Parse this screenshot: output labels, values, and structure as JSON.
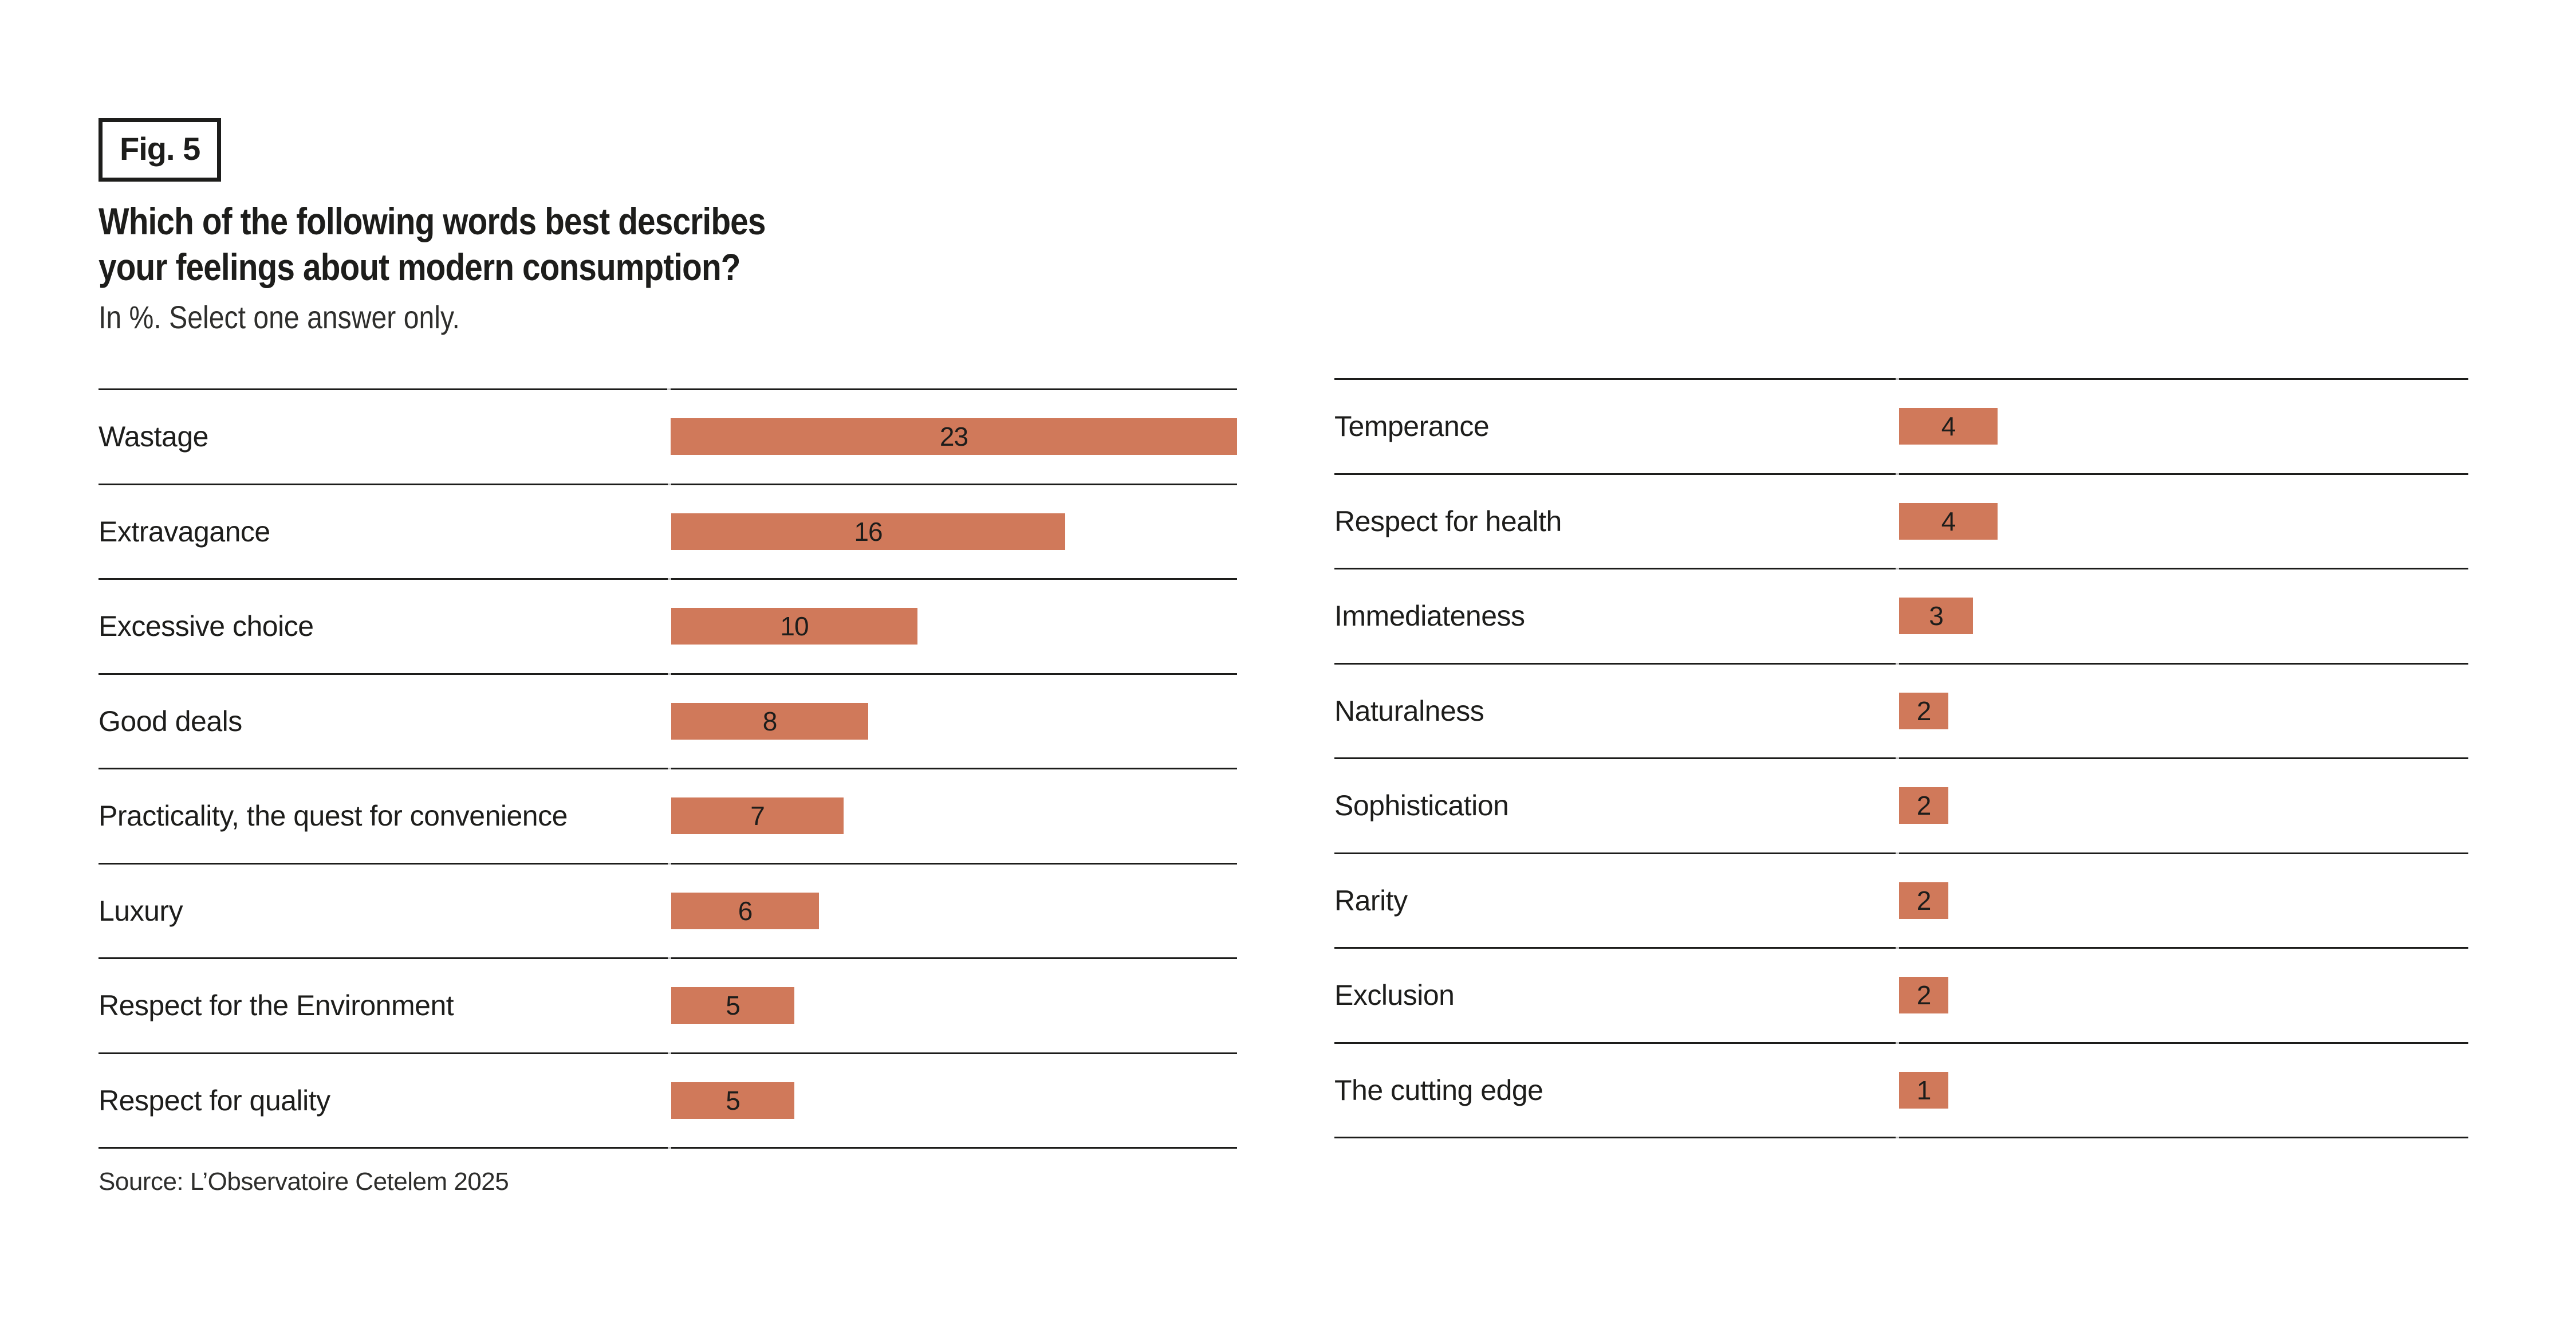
{
  "figure": {
    "tag": "Fig. 5"
  },
  "title": {
    "line1": "Which of the following words best describes",
    "line2": "your feelings about modern consumption?",
    "subtitle": "In %. Select one answer only."
  },
  "source": "Source: L’Observatoire Cetelem 2025",
  "colors": {
    "bar": "#d0795a",
    "text": "#1d1d1b",
    "separator_line": "#1d1d1b",
    "background": "#ffffff"
  },
  "chart_data": {
    "type": "bar",
    "orientation": "horizontal",
    "unit": "%",
    "title": "Which of the following words best describes your feelings about modern consumption?",
    "subtitle": "In %. Select one answer only.",
    "xlim": [
      0,
      23
    ],
    "grid": false,
    "legend": false,
    "value_labels": "inside-bar",
    "columns": [
      {
        "position": "left",
        "items": [
          {
            "label": "Wastage",
            "value": 23
          },
          {
            "label": "Extravagance",
            "value": 16
          },
          {
            "label": "Excessive choice",
            "value": 10
          },
          {
            "label": "Good deals",
            "value": 8
          },
          {
            "label": "Practicality, the quest for convenience",
            "value": 7
          },
          {
            "label": "Luxury",
            "value": 6
          },
          {
            "label": "Respect for the Environment",
            "value": 5
          },
          {
            "label": "Respect for quality",
            "value": 5
          }
        ]
      },
      {
        "position": "right",
        "items": [
          {
            "label": "Temperance",
            "value": 4
          },
          {
            "label": "Respect for health",
            "value": 4
          },
          {
            "label": "Immediateness",
            "value": 3
          },
          {
            "label": "Naturalness",
            "value": 2
          },
          {
            "label": "Sophistication",
            "value": 2
          },
          {
            "label": "Rarity",
            "value": 2
          },
          {
            "label": "Exclusion",
            "value": 2
          },
          {
            "label": "The cutting edge",
            "value": 1
          }
        ]
      }
    ]
  }
}
